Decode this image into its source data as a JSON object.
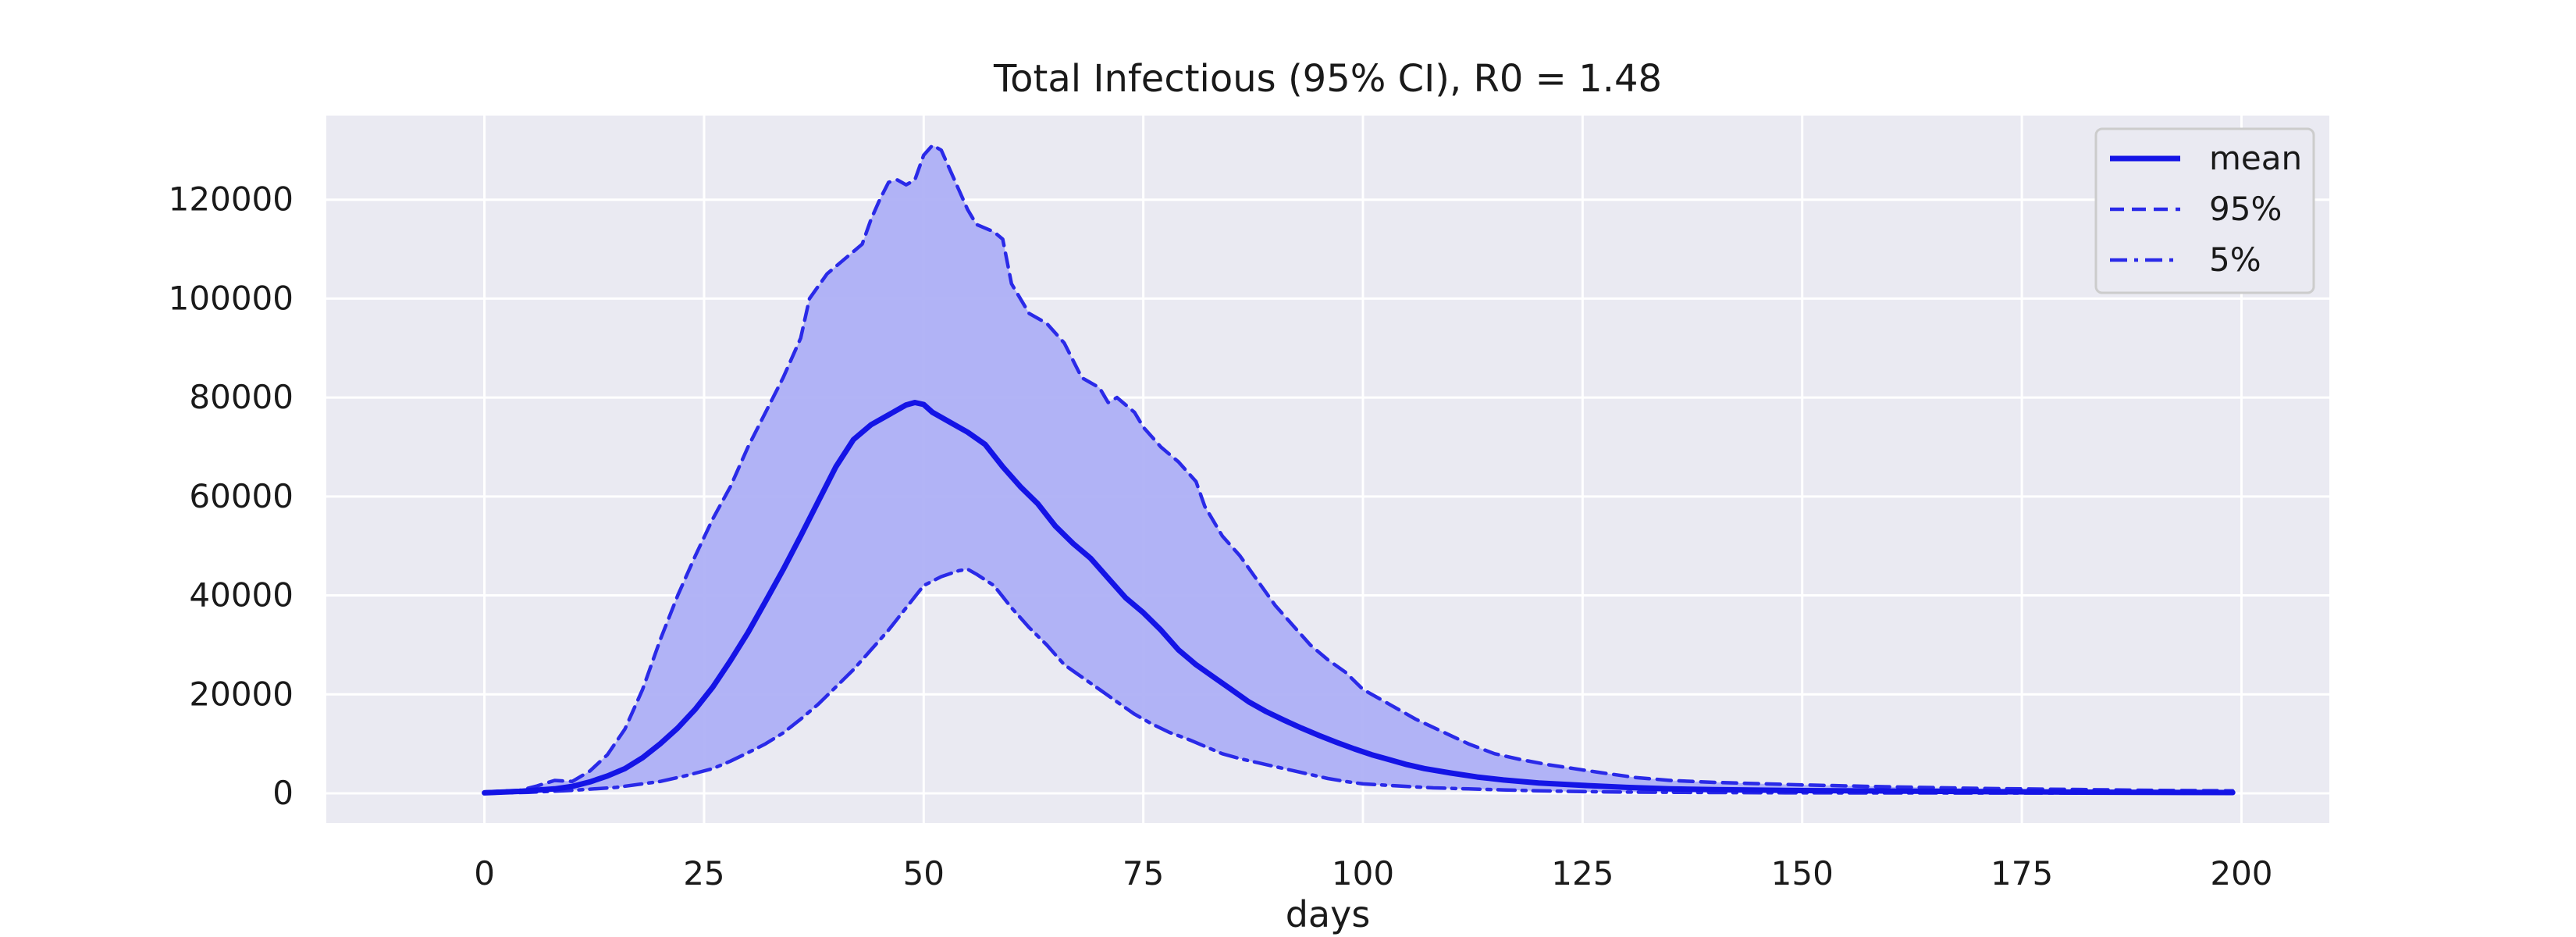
{
  "chart_data": {
    "type": "line",
    "title": "Total Infectious (95% CI), R0 = 1.48",
    "xlabel": "days",
    "ylabel": "",
    "xlim": [
      -18,
      210
    ],
    "ylim": [
      -6000,
      137000
    ],
    "x_ticks": [
      0,
      25,
      50,
      75,
      100,
      125,
      150,
      175,
      200
    ],
    "y_ticks": [
      0,
      20000,
      40000,
      60000,
      80000,
      100000,
      120000
    ],
    "grid": true,
    "legend_position": "top-right",
    "band": {
      "between": [
        "5%",
        "95%"
      ],
      "color": "#aeb0f5"
    },
    "series": [
      {
        "name": "mean",
        "color": "#1414e6",
        "style": "solid",
        "points": [
          [
            0,
            100
          ],
          [
            4,
            400
          ],
          [
            8,
            900
          ],
          [
            10,
            1400
          ],
          [
            12,
            2300
          ],
          [
            14,
            3500
          ],
          [
            16,
            5000
          ],
          [
            18,
            7200
          ],
          [
            20,
            10000
          ],
          [
            22,
            13200
          ],
          [
            24,
            17000
          ],
          [
            26,
            21500
          ],
          [
            28,
            26800
          ],
          [
            30,
            32500
          ],
          [
            32,
            38800
          ],
          [
            34,
            45200
          ],
          [
            36,
            52000
          ],
          [
            38,
            59000
          ],
          [
            40,
            66000
          ],
          [
            42,
            71500
          ],
          [
            44,
            74500
          ],
          [
            46,
            76500
          ],
          [
            48,
            78500
          ],
          [
            49,
            79000
          ],
          [
            50,
            78600
          ],
          [
            51,
            77000
          ],
          [
            53,
            75000
          ],
          [
            55,
            73000
          ],
          [
            57,
            70500
          ],
          [
            59,
            66000
          ],
          [
            61,
            62000
          ],
          [
            63,
            58500
          ],
          [
            65,
            54000
          ],
          [
            67,
            50500
          ],
          [
            69,
            47500
          ],
          [
            71,
            43500
          ],
          [
            73,
            39500
          ],
          [
            75,
            36500
          ],
          [
            77,
            33000
          ],
          [
            79,
            29000
          ],
          [
            81,
            26000
          ],
          [
            83,
            23500
          ],
          [
            85,
            21000
          ],
          [
            87,
            18500
          ],
          [
            89,
            16500
          ],
          [
            91,
            14800
          ],
          [
            93,
            13200
          ],
          [
            95,
            11700
          ],
          [
            97,
            10300
          ],
          [
            99,
            9000
          ],
          [
            101,
            7800
          ],
          [
            103,
            6800
          ],
          [
            105,
            5800
          ],
          [
            107,
            5000
          ],
          [
            110,
            4100
          ],
          [
            113,
            3300
          ],
          [
            116,
            2700
          ],
          [
            120,
            2100
          ],
          [
            125,
            1600
          ],
          [
            130,
            1200
          ],
          [
            135,
            900
          ],
          [
            140,
            750
          ],
          [
            150,
            550
          ],
          [
            160,
            450
          ],
          [
            170,
            350
          ],
          [
            180,
            250
          ],
          [
            190,
            180
          ],
          [
            199,
            150
          ]
        ]
      },
      {
        "name": "95%",
        "color": "#2a2ae8",
        "style": "dashed",
        "points": [
          [
            0,
            300
          ],
          [
            4,
            600
          ],
          [
            6,
            1500
          ],
          [
            8,
            2600
          ],
          [
            10,
            2400
          ],
          [
            12,
            4500
          ],
          [
            14,
            7800
          ],
          [
            16,
            13000
          ],
          [
            18,
            21000
          ],
          [
            20,
            31000
          ],
          [
            22,
            40000
          ],
          [
            24,
            48000
          ],
          [
            26,
            55500
          ],
          [
            28,
            62000
          ],
          [
            30,
            70000
          ],
          [
            32,
            77000
          ],
          [
            34,
            84000
          ],
          [
            36,
            92000
          ],
          [
            37,
            100000
          ],
          [
            39,
            105000
          ],
          [
            41,
            108000
          ],
          [
            43,
            111000
          ],
          [
            44,
            116000
          ],
          [
            45,
            120000
          ],
          [
            46,
            123500
          ],
          [
            47,
            124000
          ],
          [
            48,
            123000
          ],
          [
            49,
            124000
          ],
          [
            50,
            129000
          ],
          [
            51,
            131000
          ],
          [
            52,
            130000
          ],
          [
            54,
            122000
          ],
          [
            55,
            118000
          ],
          [
            56,
            115000
          ],
          [
            58,
            113500
          ],
          [
            59,
            112000
          ],
          [
            60,
            103000
          ],
          [
            62,
            97000
          ],
          [
            64,
            95000
          ],
          [
            66,
            91000
          ],
          [
            68,
            84000
          ],
          [
            70,
            82000
          ],
          [
            71,
            79000
          ],
          [
            72,
            80000
          ],
          [
            74,
            77000
          ],
          [
            75,
            74000
          ],
          [
            77,
            70000
          ],
          [
            79,
            67000
          ],
          [
            81,
            63000
          ],
          [
            82,
            58000
          ],
          [
            84,
            52000
          ],
          [
            86,
            48000
          ],
          [
            88,
            43000
          ],
          [
            90,
            38000
          ],
          [
            92,
            34000
          ],
          [
            94,
            30000
          ],
          [
            96,
            27000
          ],
          [
            98,
            24500
          ],
          [
            100,
            21000
          ],
          [
            103,
            18000
          ],
          [
            106,
            15000
          ],
          [
            109,
            12500
          ],
          [
            112,
            10000
          ],
          [
            115,
            8000
          ],
          [
            118,
            6800
          ],
          [
            121,
            5800
          ],
          [
            124,
            5000
          ],
          [
            127,
            4200
          ],
          [
            131,
            3200
          ],
          [
            135,
            2600
          ],
          [
            140,
            2200
          ],
          [
            150,
            1700
          ],
          [
            160,
            1300
          ],
          [
            170,
            1000
          ],
          [
            180,
            800
          ],
          [
            190,
            600
          ],
          [
            199,
            500
          ]
        ]
      },
      {
        "name": "5%",
        "color": "#2a2ae8",
        "style": "dashdot",
        "points": [
          [
            0,
            0
          ],
          [
            5,
            200
          ],
          [
            10,
            600
          ],
          [
            15,
            1200
          ],
          [
            20,
            2400
          ],
          [
            23,
            3600
          ],
          [
            26,
            5000
          ],
          [
            28,
            6500
          ],
          [
            30,
            8200
          ],
          [
            32,
            10000
          ],
          [
            34,
            12200
          ],
          [
            36,
            15000
          ],
          [
            38,
            18000
          ],
          [
            40,
            21500
          ],
          [
            42,
            25000
          ],
          [
            44,
            29000
          ],
          [
            46,
            33000
          ],
          [
            48,
            37500
          ],
          [
            50,
            42000
          ],
          [
            52,
            43800
          ],
          [
            54,
            45000
          ],
          [
            55,
            45300
          ],
          [
            56,
            44300
          ],
          [
            58,
            42000
          ],
          [
            60,
            37500
          ],
          [
            62,
            33500
          ],
          [
            64,
            30000
          ],
          [
            66,
            26000
          ],
          [
            68,
            23500
          ],
          [
            70,
            21000
          ],
          [
            72,
            18500
          ],
          [
            74,
            16000
          ],
          [
            76,
            14000
          ],
          [
            78,
            12300
          ],
          [
            80,
            11000
          ],
          [
            82,
            9500
          ],
          [
            84,
            8000
          ],
          [
            86,
            7000
          ],
          [
            88,
            6200
          ],
          [
            90,
            5400
          ],
          [
            92,
            4600
          ],
          [
            94,
            3800
          ],
          [
            96,
            3000
          ],
          [
            98,
            2400
          ],
          [
            100,
            1900
          ],
          [
            104,
            1500
          ],
          [
            108,
            1100
          ],
          [
            112,
            900
          ],
          [
            116,
            700
          ],
          [
            120,
            500
          ],
          [
            125,
            350
          ],
          [
            130,
            250
          ],
          [
            140,
            150
          ],
          [
            150,
            100
          ],
          [
            170,
            60
          ],
          [
            199,
            30
          ]
        ]
      }
    ]
  }
}
